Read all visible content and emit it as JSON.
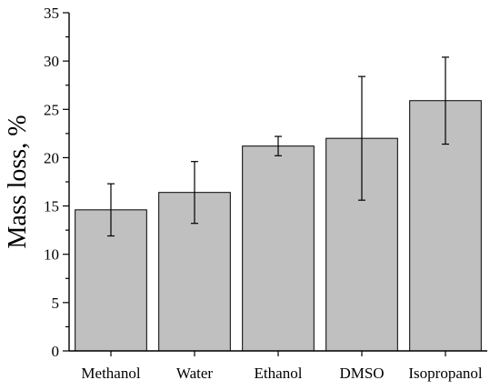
{
  "chart_data": {
    "type": "bar",
    "categories": [
      "Methanol",
      "Water",
      "Ethanol",
      "DMSO",
      "Isopropanol"
    ],
    "values": [
      14.6,
      16.4,
      21.2,
      22.0,
      25.9
    ],
    "error_low": [
      11.9,
      13.2,
      20.2,
      15.6,
      21.4
    ],
    "error_high": [
      17.3,
      19.6,
      22.2,
      28.4,
      30.4
    ],
    "ylabel": "Mass loss, %",
    "xlabel": "",
    "ylim": [
      0,
      35
    ],
    "yticks": [
      0,
      5,
      10,
      15,
      20,
      25,
      30,
      35
    ],
    "grid": false,
    "colors": {
      "bar_fill": "#c0c0c0",
      "bar_stroke": "#000000",
      "axis": "#000000",
      "error": "#000000"
    }
  }
}
